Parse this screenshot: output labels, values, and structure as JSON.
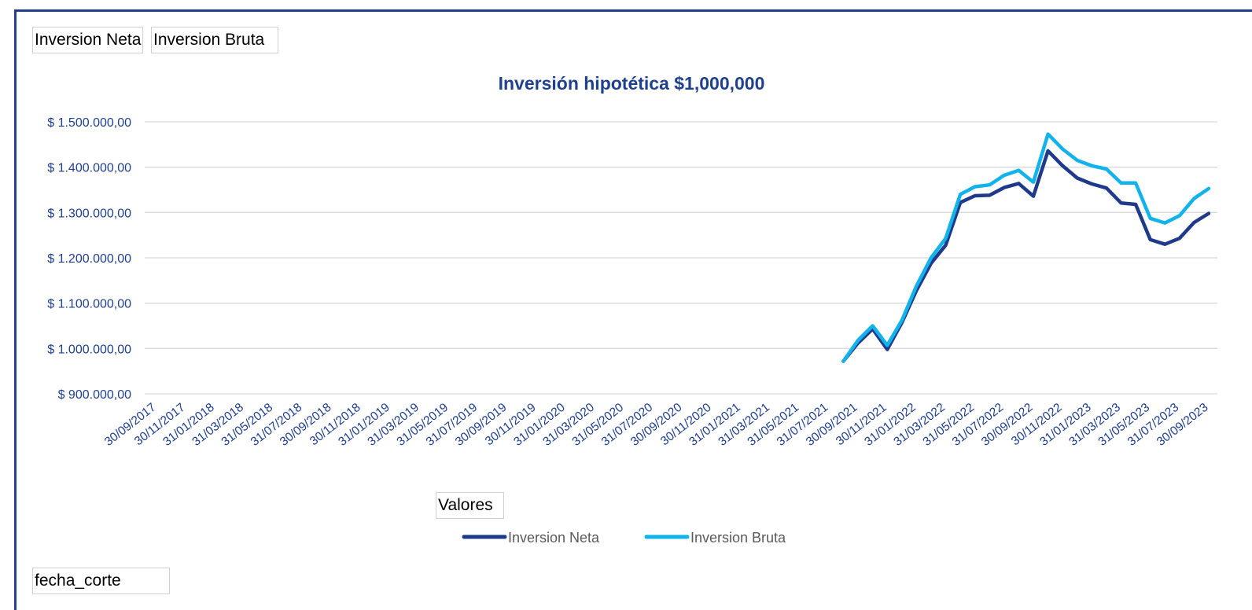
{
  "filters": {
    "top_buttons": [
      "Inversion Neta",
      "Inversion Bruta"
    ],
    "values_field": "Valores",
    "bottom_field": "fecha_corte"
  },
  "colors": {
    "neta": "#1f3a8a",
    "bruta": "#12b3ea",
    "grid": "#d9d9d9",
    "text": "#1f3f8f"
  },
  "chart_data": {
    "type": "line",
    "title": "Inversión hipotética $1,000,000",
    "x_tick_labels": [
      "30/09/2017",
      "30/11/2017",
      "31/01/2018",
      "31/03/2018",
      "31/05/2018",
      "31/07/2018",
      "30/09/2018",
      "30/11/2018",
      "31/01/2019",
      "31/03/2019",
      "31/05/2019",
      "31/07/2019",
      "30/09/2019",
      "30/11/2019",
      "31/01/2020",
      "31/03/2020",
      "31/05/2020",
      "31/07/2020",
      "30/09/2020",
      "30/11/2020",
      "31/01/2021",
      "31/03/2021",
      "31/05/2021",
      "31/07/2021",
      "30/09/2021",
      "30/11/2021",
      "31/01/2022",
      "31/03/2022",
      "31/05/2022",
      "31/07/2022",
      "30/09/2022",
      "30/11/2022",
      "31/01/2023",
      "31/03/2023",
      "31/05/2023",
      "31/07/2023",
      "30/09/2023"
    ],
    "y_tick_labels": [
      "$ 900.000,00",
      "$ 1.000.000,00",
      "$ 1.100.000,00",
      "$ 1.200.000,00",
      "$ 1.300.000,00",
      "$ 1.400.000,00",
      "$ 1.500.000,00"
    ],
    "ylim": [
      900000,
      1500000
    ],
    "y_step": 100000,
    "grid": true,
    "legend_position": "bottom",
    "x": [
      "31/08/2021",
      "30/09/2021",
      "31/10/2021",
      "30/11/2021",
      "31/12/2021",
      "31/01/2022",
      "28/02/2022",
      "31/03/2022",
      "30/04/2022",
      "31/05/2022",
      "30/06/2022",
      "31/07/2022",
      "31/08/2022",
      "30/09/2022",
      "31/10/2022",
      "30/11/2022",
      "31/12/2022",
      "31/01/2023",
      "28/02/2023",
      "31/03/2023",
      "30/04/2023",
      "31/05/2023",
      "30/06/2023",
      "31/07/2023",
      "31/08/2023",
      "30/09/2023"
    ],
    "series": [
      {
        "name": "Inversion Neta",
        "color": "#1f3a8a",
        "values": [
          972000,
          1012000,
          1043000,
          998000,
          1057000,
          1128000,
          1188000,
          1228000,
          1322000,
          1337000,
          1338000,
          1355000,
          1364000,
          1336000,
          1436000,
          1403000,
          1376000,
          1363000,
          1354000,
          1321000,
          1318000,
          1240000,
          1230000,
          1243000,
          1278000,
          1298000
        ]
      },
      {
        "name": "Inversion Bruta",
        "color": "#12b3ea",
        "values": [
          972000,
          1018000,
          1050000,
          1007000,
          1062000,
          1138000,
          1200000,
          1243000,
          1340000,
          1357000,
          1361000,
          1382000,
          1393000,
          1367000,
          1473000,
          1440000,
          1415000,
          1403000,
          1396000,
          1365000,
          1365000,
          1287000,
          1277000,
          1293000,
          1331000,
          1353000
        ]
      }
    ]
  }
}
